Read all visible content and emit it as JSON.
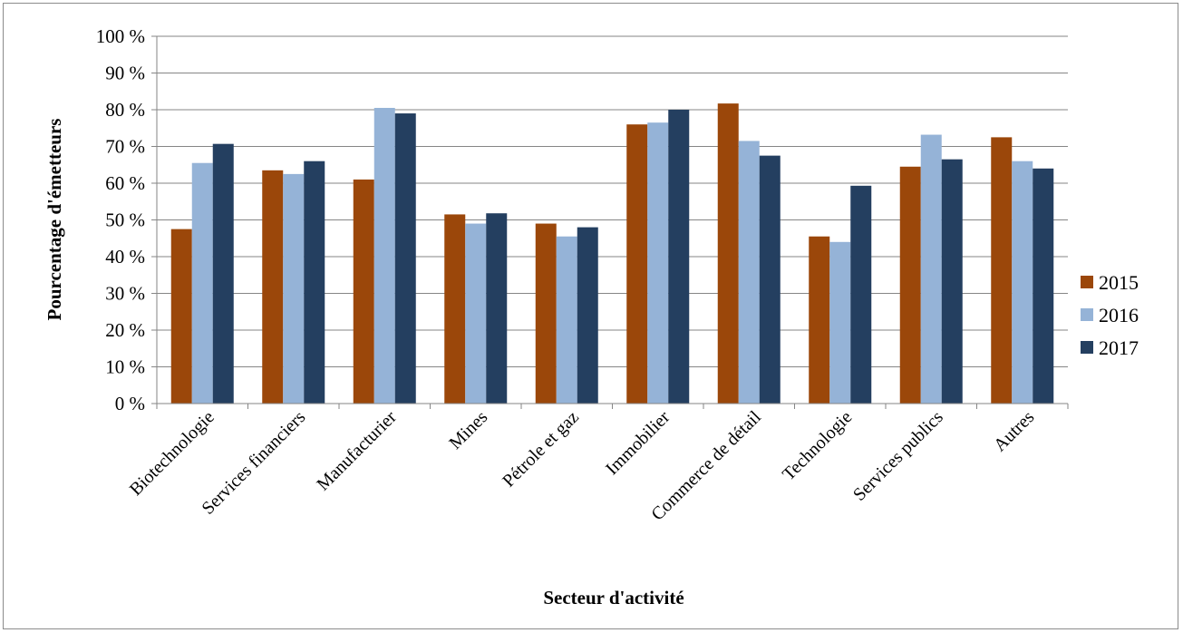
{
  "chart_data": {
    "type": "bar",
    "title": "",
    "xlabel": "Secteur d'activité",
    "ylabel": "Pourcentage d'émetteurs",
    "ylim": [
      0,
      100
    ],
    "y_ticks": [
      "0 %",
      "10 %",
      "20 %",
      "30 %",
      "40 %",
      "50 %",
      "60 %",
      "70 %",
      "80 %",
      "90 %",
      "100 %"
    ],
    "grid": true,
    "legend_position": "right",
    "categories": [
      "Biotechnologie",
      "Services financiers",
      "Manufacturier",
      "Mines",
      "Pétrole et gaz",
      "Immobilier",
      "Commerce de détail",
      "Technologie",
      "Services publics",
      "Autres"
    ],
    "series": [
      {
        "name": "2015",
        "color": "#9b470a",
        "values": [
          47.5,
          63.5,
          61,
          51.5,
          49,
          76,
          81.7,
          45.5,
          64.5,
          72.5
        ]
      },
      {
        "name": "2016",
        "color": "#95b3d7",
        "values": [
          65.5,
          62.5,
          80.5,
          49,
          45.5,
          76.5,
          71.5,
          44,
          73.2,
          66
        ]
      },
      {
        "name": "2017",
        "color": "#243f60",
        "values": [
          70.7,
          66,
          79,
          51.8,
          48,
          80,
          67.5,
          59.3,
          66.5,
          64
        ]
      }
    ]
  }
}
